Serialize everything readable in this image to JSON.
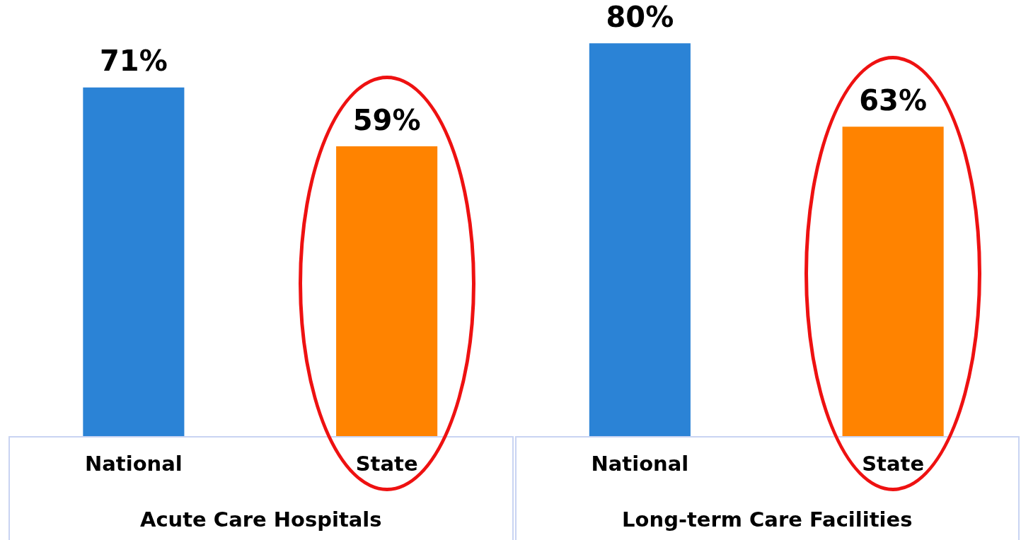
{
  "chart_data": {
    "type": "bar",
    "categories": [
      "National",
      "State",
      "National",
      "State"
    ],
    "values": [
      71,
      59,
      80,
      63
    ],
    "colors": [
      "#2b83d6",
      "#ff8300",
      "#2b83d6",
      "#ff8300"
    ],
    "data_labels": true,
    "value_labels": [
      "71%",
      "59%",
      "80%",
      "63%"
    ],
    "annotations": [
      "Acute Care Hospitals",
      "Long-term Care Facilities"
    ],
    "grid": false,
    "legend": false
  }
}
